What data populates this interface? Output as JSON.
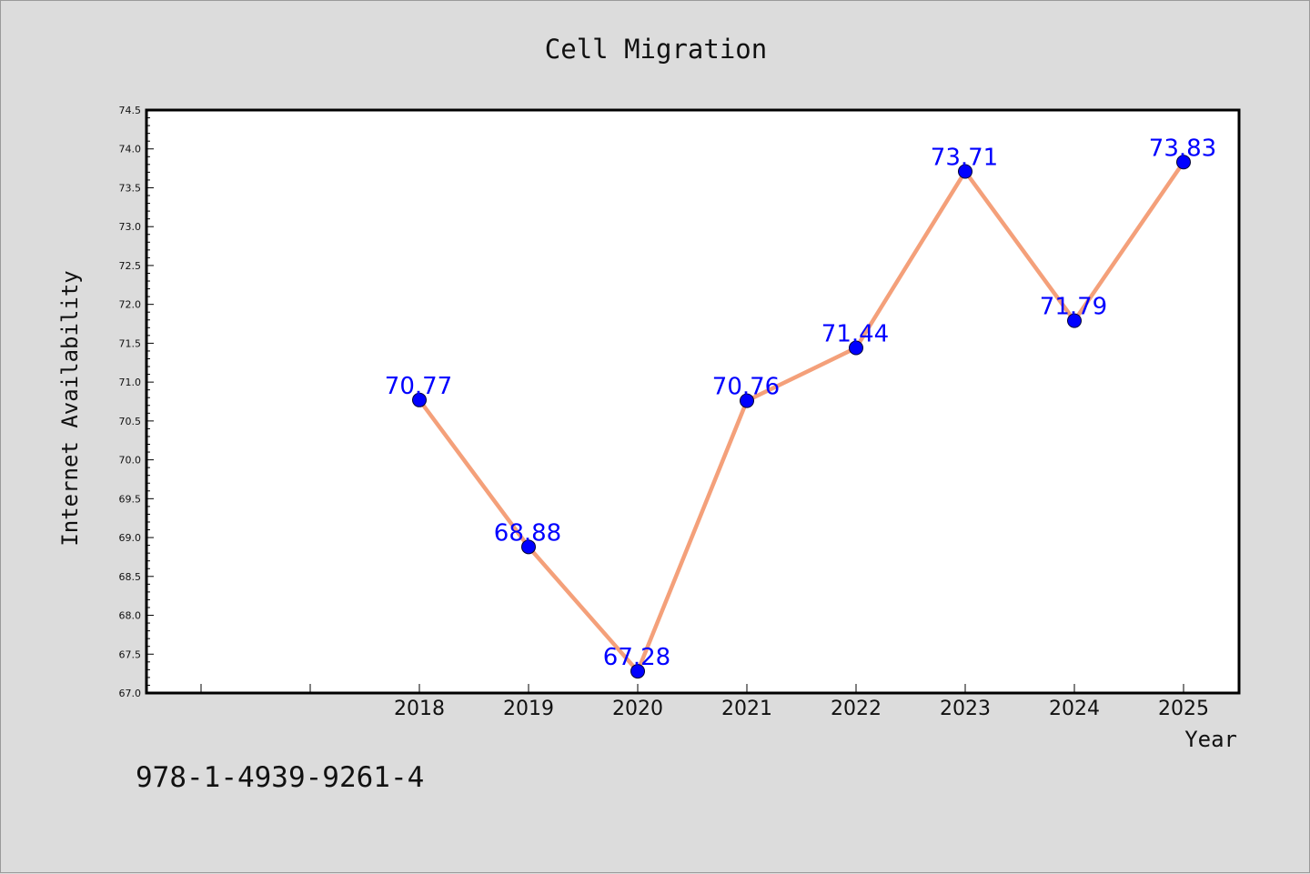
{
  "footer": {
    "code": "978-1-4939-9261-4"
  },
  "colors": {
    "background": "#dcdcdc",
    "plot_area": "#ffffff",
    "line": "#f4a07a",
    "marker": "#0000ff",
    "label": "#0000ff"
  },
  "chart_data": {
    "type": "line",
    "title": "Cell Migration",
    "xlabel": "Year",
    "ylabel": "Internet Availability",
    "categories": [
      "2018",
      "2019",
      "2020",
      "2021",
      "2022",
      "2023",
      "2024",
      "2025"
    ],
    "x_tick_slots": 10,
    "x_first_labeled_slot": 2,
    "values": [
      70.77,
      68.88,
      67.28,
      70.76,
      71.44,
      73.71,
      71.79,
      73.83
    ],
    "data_labels": [
      "70.77",
      "68.88",
      "67.28",
      "70.76",
      "71.44",
      "73.71",
      "71.79",
      "73.83"
    ],
    "ylim": [
      67.0,
      74.5
    ],
    "y_major_step": 0.5,
    "y_minor_per_major": 5,
    "grid": false,
    "legend": "none"
  }
}
